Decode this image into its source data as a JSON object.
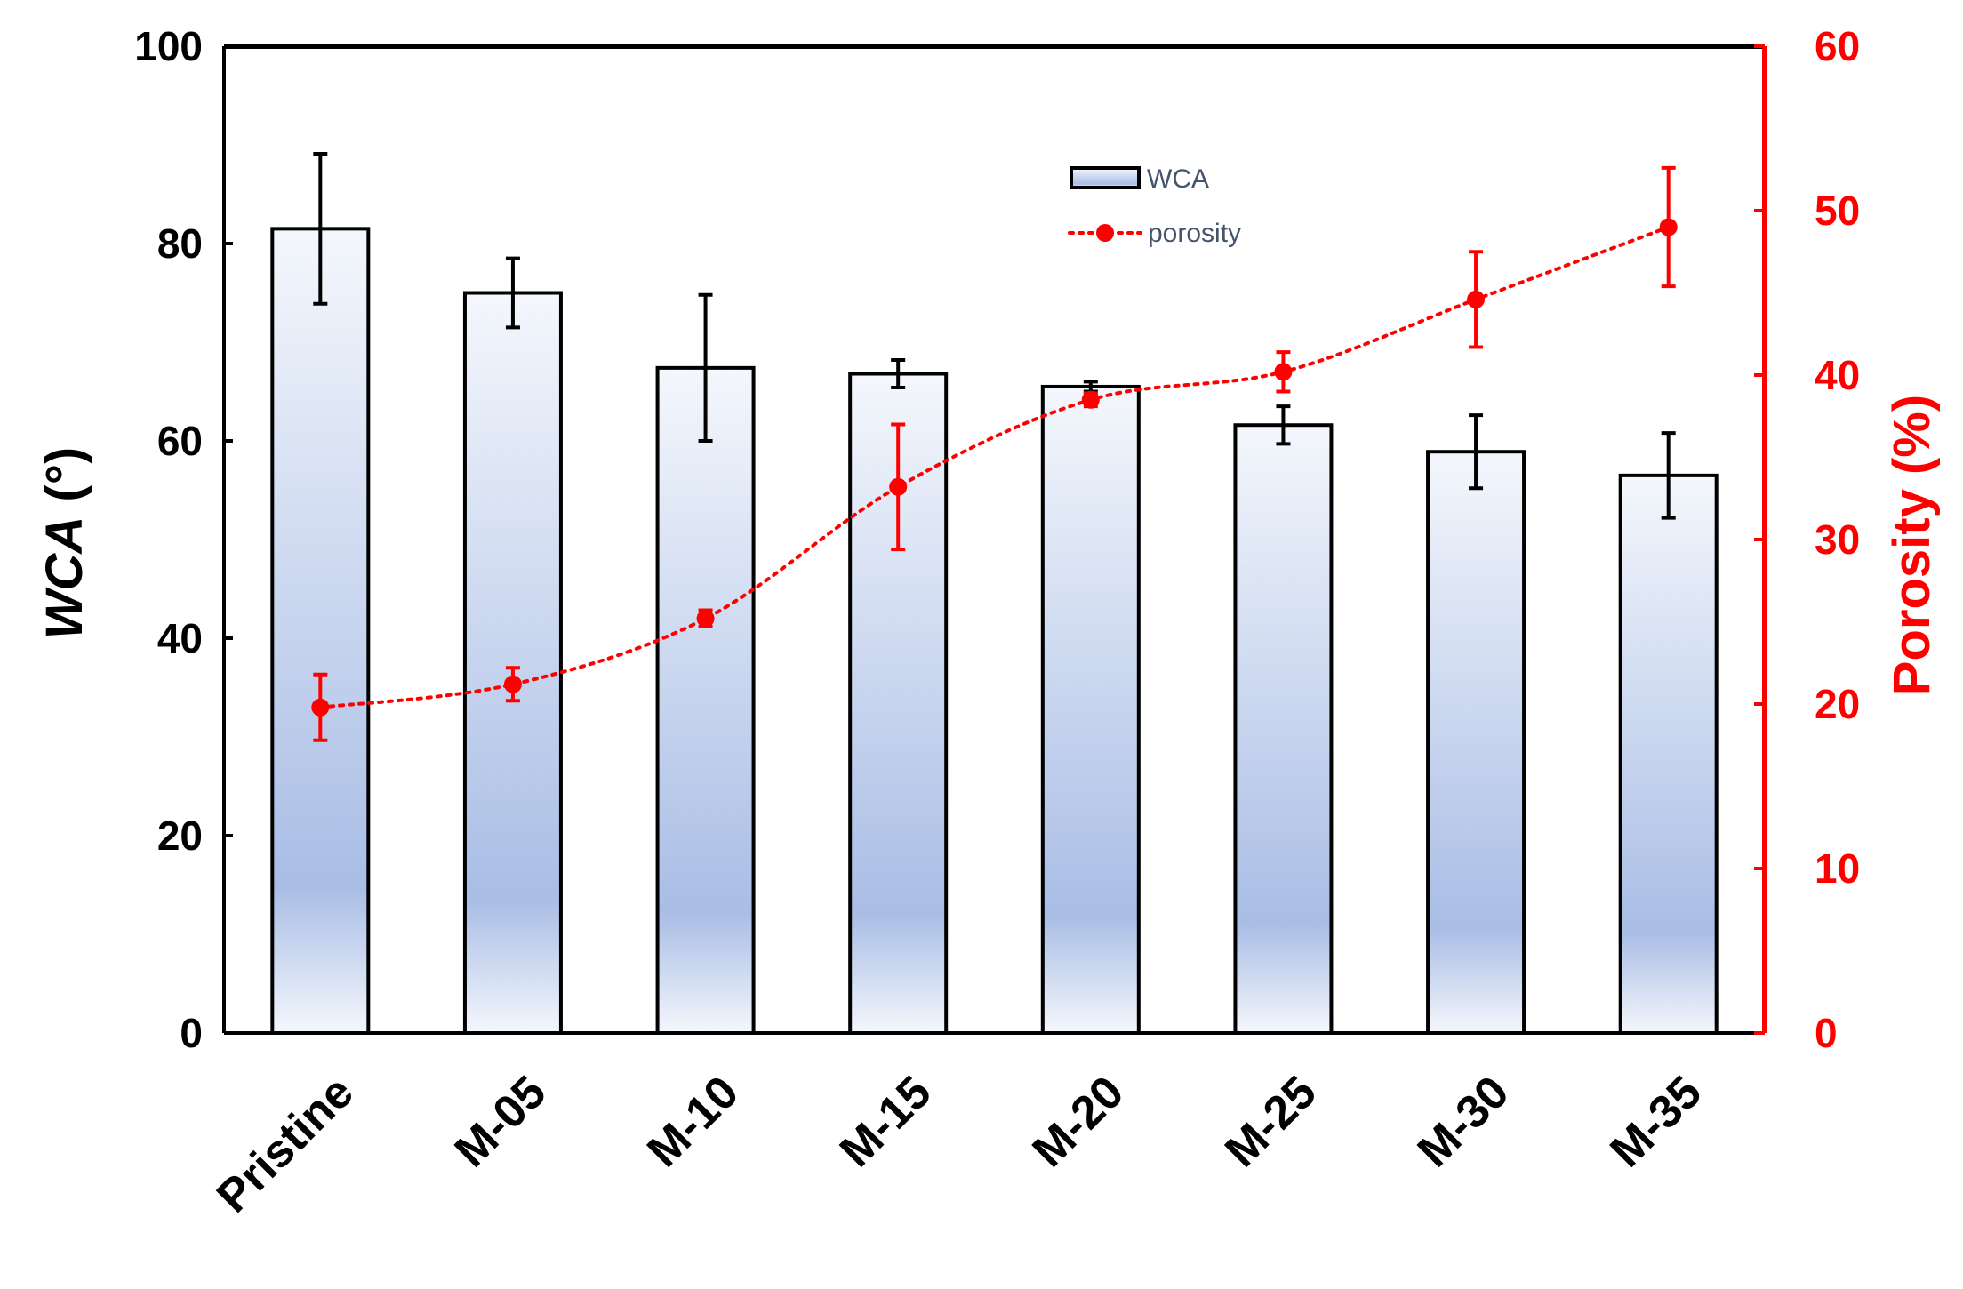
{
  "chart_data": {
    "type": "bar",
    "categories": [
      "Pristine",
      "M-05",
      "M-10",
      "M-15",
      "M-20",
      "M-25",
      "M-30",
      "M-35"
    ],
    "series": [
      {
        "name": "WCA",
        "type": "bar",
        "axis": "left",
        "values": [
          81.5,
          75.0,
          67.4,
          66.8,
          65.5,
          61.6,
          58.9,
          56.5
        ],
        "errors": [
          7.6,
          3.5,
          7.4,
          1.4,
          0.5,
          1.9,
          3.7,
          4.3
        ]
      },
      {
        "name": "porosity",
        "type": "line",
        "line_style": "dotted",
        "marker": "circle",
        "axis": "right",
        "values": [
          19.8,
          21.2,
          25.2,
          33.2,
          38.5,
          40.2,
          44.6,
          49.0
        ],
        "errors": [
          2.0,
          1.0,
          0.5,
          3.8,
          0.4,
          1.2,
          2.9,
          3.6
        ]
      }
    ],
    "y_left": {
      "label_italic": "WCA",
      "label_rest": " (°)",
      "range": [
        0,
        100
      ],
      "ticks": [
        "0",
        "20",
        "40",
        "60",
        "80",
        "100"
      ]
    },
    "y_right": {
      "label": "Porosity (%)",
      "range": [
        0,
        60
      ],
      "ticks": [
        "0",
        "10",
        "20",
        "30",
        "40",
        "50",
        "60"
      ]
    },
    "grid": false,
    "legend_position": "top-center",
    "colors": {
      "bar_fill_top": "#f4f7fc",
      "bar_fill_bottom": "#a9bde5",
      "bar_stroke": "#000000",
      "porosity": "#ff0000",
      "axis_left": "#000000",
      "axis_right": "#ff0000",
      "legend_text": "#44546a"
    }
  }
}
